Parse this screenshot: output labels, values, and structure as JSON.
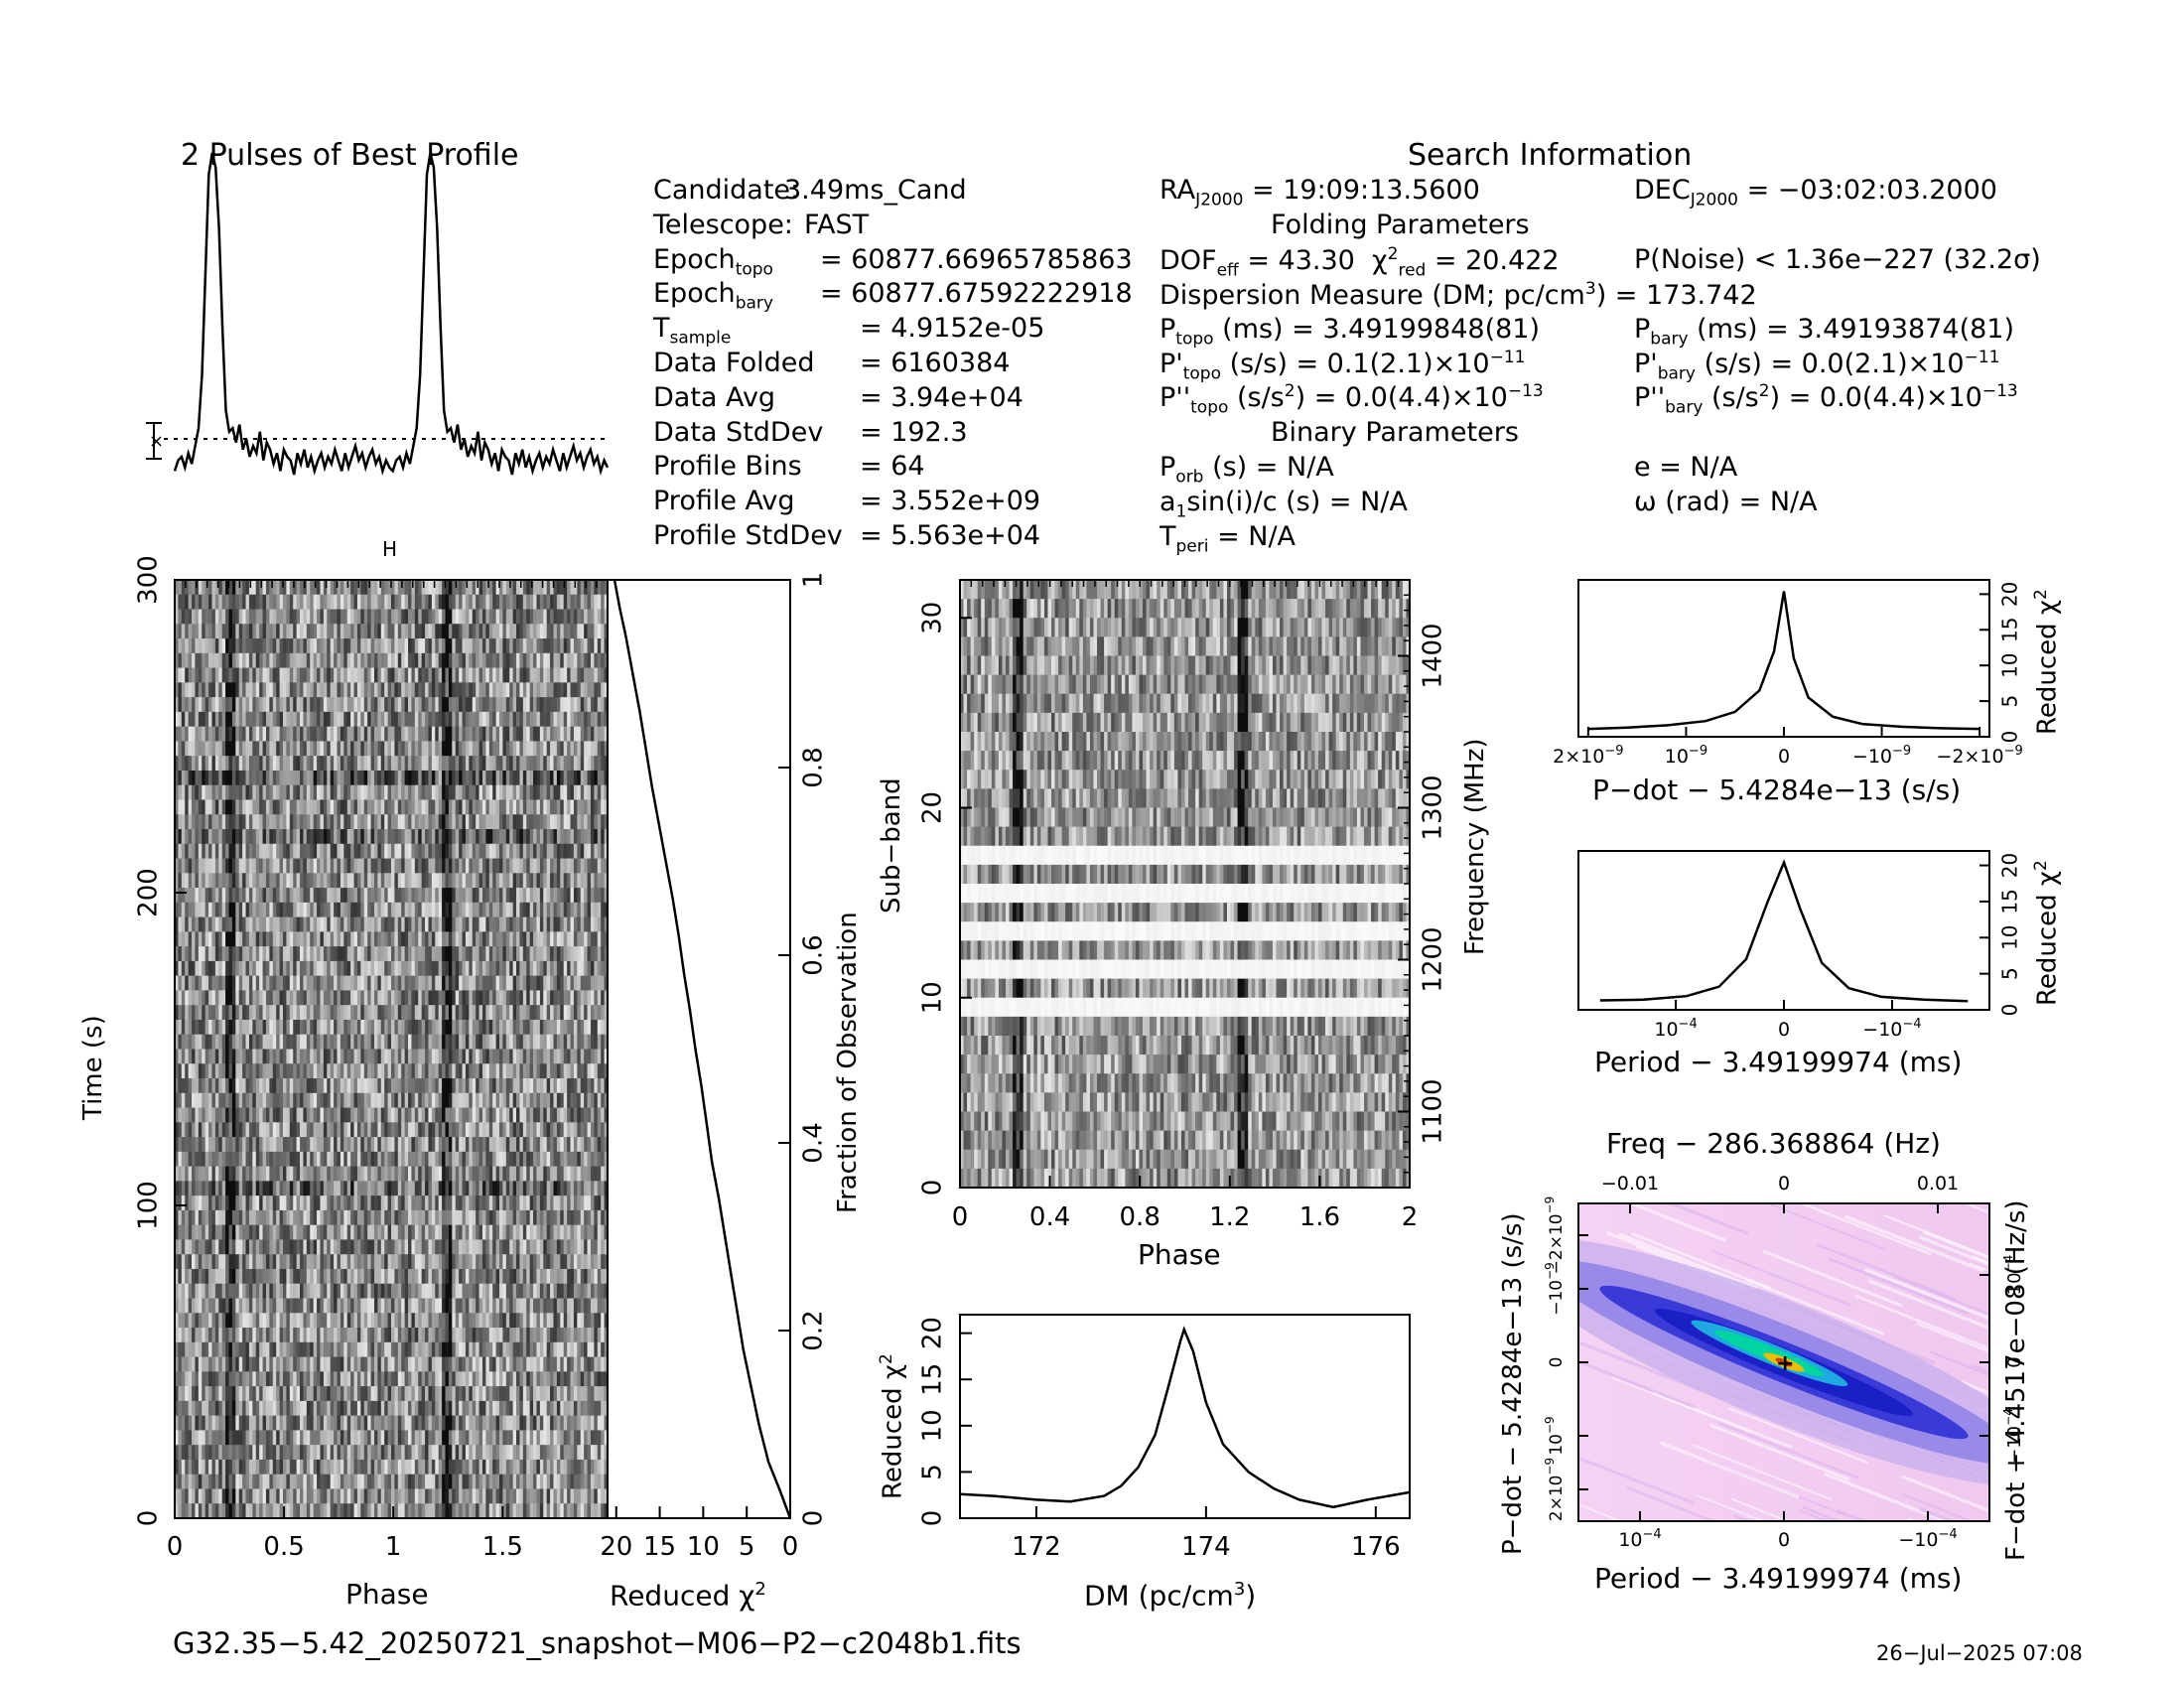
{
  "profile": {
    "title": "2 Pulses of Best Profile",
    "marker": "H",
    "values": [
      -0.9,
      -0.6,
      -0.5,
      -0.8,
      -0.4,
      -0.7,
      -0.2,
      0.3,
      1.8,
      4.6,
      7.4,
      8.0,
      7.6,
      5.9,
      3.1,
      0.8,
      0.2,
      0.3,
      -0.1,
      0.4,
      -0.3,
      0.0,
      -0.5,
      -0.2,
      -0.4,
      0.2,
      -0.6,
      -0.1,
      -0.3,
      -0.7,
      -0.4,
      -0.9,
      -0.3,
      -0.5,
      -0.6,
      -1.0,
      -0.4,
      -0.7,
      -0.3,
      -0.8,
      -0.5,
      -0.9,
      -0.6,
      -0.4,
      -0.8,
      -0.5,
      -0.7,
      -0.3,
      -0.6,
      -0.9,
      -0.4,
      -0.8,
      -0.5,
      -0.2,
      -0.6,
      -0.4,
      -0.8,
      -0.5,
      -0.3,
      -0.7,
      -0.5,
      -0.9,
      -0.6,
      -0.8
    ]
  },
  "info": {
    "header": "Search Information",
    "left": [
      {
        "label": "Candidate:",
        "value": "3.49ms_Cand"
      },
      {
        "label": "Telescope:",
        "value": "FAST"
      },
      {
        "label": "Epoch",
        "sub": "topo",
        "value": "= 60877.66965785863"
      },
      {
        "label": "Epoch",
        "sub": "bary",
        "value": "= 60877.67592222918"
      },
      {
        "label": "T",
        "sub": "sample",
        "value": "=   4.9152e-05"
      },
      {
        "label": "Data Folded",
        "value": "=   6160384"
      },
      {
        "label": "Data Avg",
        "value": "=   3.94e+04"
      },
      {
        "label": "Data StdDev",
        "value": "=   192.3"
      },
      {
        "label": "Profile Bins",
        "value": "=   64"
      },
      {
        "label": "Profile Avg",
        "value": "=   3.552e+09"
      },
      {
        "label": "Profile StdDev",
        "value": "=   5.563e+04"
      }
    ],
    "ra": "= 19:09:13.5600",
    "dec": "= −03:02:03.2000",
    "folding_header": "Folding Parameters",
    "dof": "= 43.30",
    "chi2red": "= 20.422",
    "pnoise": "P(Noise) < 1.36e−227  (32.2σ)",
    "dm_line": "Dispersion Measure (DM; pc/cm",
    "dm_value": ") = 173.742",
    "ptopo": "(ms) =  3.49199848(81)",
    "pbary": "(ms) =  3.49193874(81)",
    "pdot_topo": "(s/s) =  0.1(2.1)×10",
    "pdot_bary": "(s/s) = 0.0(2.1)×10",
    "pddot_topo": ") = 0.0(4.4)×10",
    "pddot_bary": ") = 0.0(4.4)×10",
    "exp11": "−11",
    "exp13": "−13",
    "binary_header": "Binary Parameters",
    "porb": "(s) = N/A",
    "a1": "sin(i)/c (s) = N/A",
    "tperi": "= N/A",
    "ecc": "e = N/A",
    "omega": "ω (rad) = N/A"
  },
  "time_phase": {
    "ylabel": "Time (s)",
    "xlabel": "Phase",
    "yticks": [
      "0",
      "100",
      "200",
      "300"
    ],
    "xticks": [
      "0",
      "0.5",
      "1",
      "1.5"
    ]
  },
  "chi_time": {
    "xlabel": "Reduced χ",
    "xticks": [
      "20",
      "15",
      "10",
      "5",
      "0"
    ],
    "yticks": [
      "0",
      "0.2",
      "0.4",
      "0.6",
      "0.8",
      "1"
    ],
    "ylabel": "Fraction of Observation",
    "curve": [
      [
        0,
        0
      ],
      [
        1.2,
        0.03
      ],
      [
        2.5,
        0.06
      ],
      [
        3.6,
        0.1
      ],
      [
        4.5,
        0.14
      ],
      [
        5.4,
        0.18
      ],
      [
        6.1,
        0.22
      ],
      [
        6.8,
        0.26
      ],
      [
        7.5,
        0.3
      ],
      [
        8.2,
        0.34
      ],
      [
        9.0,
        0.38
      ],
      [
        9.6,
        0.42
      ],
      [
        10.2,
        0.46
      ],
      [
        10.9,
        0.5
      ],
      [
        11.5,
        0.54
      ],
      [
        12.2,
        0.58
      ],
      [
        12.8,
        0.62
      ],
      [
        13.5,
        0.66
      ],
      [
        14.3,
        0.7
      ],
      [
        15.1,
        0.74
      ],
      [
        15.9,
        0.78
      ],
      [
        16.6,
        0.82
      ],
      [
        17.3,
        0.86
      ],
      [
        18.1,
        0.9
      ],
      [
        18.9,
        0.94
      ],
      [
        19.6,
        0.97
      ],
      [
        20.2,
        1.0
      ]
    ]
  },
  "subband": {
    "ylabel": "Sub−band",
    "xlabel": "Phase",
    "yticks": [
      "0",
      "10",
      "20",
      "30"
    ],
    "xticks": [
      "0",
      "0.4",
      "0.8",
      "1.2",
      "1.6",
      "2"
    ],
    "freq_label": "Frequency (MHz)",
    "freq_ticks": [
      "1100",
      "1200",
      "1300",
      "1400"
    ]
  },
  "dm_chi": {
    "ylabel": "Reduced χ",
    "xlabel": "DM (pc/cm",
    "xlabel_end": ")",
    "xticks": [
      "172",
      "174",
      "176"
    ],
    "yticks": [
      "0",
      "5",
      "10",
      "15",
      "20"
    ],
    "curve": [
      [
        171.1,
        2.6
      ],
      [
        171.5,
        2.4
      ],
      [
        172.0,
        2.0
      ],
      [
        172.4,
        1.8
      ],
      [
        172.8,
        2.4
      ],
      [
        173.0,
        3.5
      ],
      [
        173.2,
        5.5
      ],
      [
        173.4,
        9.0
      ],
      [
        173.55,
        14.0
      ],
      [
        173.7,
        19.2
      ],
      [
        173.742,
        20.4
      ],
      [
        173.85,
        18.0
      ],
      [
        174.0,
        12.5
      ],
      [
        174.2,
        8.0
      ],
      [
        174.5,
        5.0
      ],
      [
        174.8,
        3.2
      ],
      [
        175.1,
        2.0
      ],
      [
        175.5,
        1.2
      ],
      [
        175.9,
        2.0
      ],
      [
        176.4,
        2.8
      ]
    ]
  },
  "pdot_chi": {
    "ylabel": "Reduced χ",
    "xlabel": "P−dot − 5.4284e−13 (s/s)",
    "xticks": [
      "2×10",
      "10",
      "0",
      "−10",
      "−2×10"
    ],
    "xtick_exp": "−9",
    "yticks": [
      "0",
      "5",
      "10",
      "15",
      "20"
    ],
    "curve": [
      [
        -2.0,
        1.1
      ],
      [
        -1.6,
        1.3
      ],
      [
        -1.2,
        1.6
      ],
      [
        -0.8,
        2.2
      ],
      [
        -0.5,
        3.5
      ],
      [
        -0.25,
        6.5
      ],
      [
        -0.1,
        12.0
      ],
      [
        0.0,
        20.4
      ],
      [
        0.1,
        11.0
      ],
      [
        0.25,
        5.5
      ],
      [
        0.5,
        2.8
      ],
      [
        0.8,
        1.8
      ],
      [
        1.2,
        1.4
      ],
      [
        1.6,
        1.2
      ],
      [
        2.0,
        1.1
      ]
    ]
  },
  "period_chi": {
    "ylabel": "Reduced χ",
    "xlabel": "Period − 3.49199974 (ms)",
    "xticks": [
      "10",
      "0",
      "−10"
    ],
    "xtick_exp": "−4",
    "yticks": [
      "0",
      "5",
      "10",
      "15",
      "20"
    ],
    "curve": [
      [
        -1.7,
        1.3
      ],
      [
        -1.3,
        1.4
      ],
      [
        -0.9,
        1.9
      ],
      [
        -0.6,
        3.2
      ],
      [
        -0.35,
        7.0
      ],
      [
        -0.15,
        15.0
      ],
      [
        0.0,
        20.4
      ],
      [
        0.15,
        14.0
      ],
      [
        0.35,
        6.5
      ],
      [
        0.6,
        3.0
      ],
      [
        0.9,
        1.8
      ],
      [
        1.3,
        1.4
      ],
      [
        1.7,
        1.2
      ]
    ]
  },
  "pp_plane": {
    "top_label": "Freq − 286.368864 (Hz)",
    "top_ticks": [
      "−0.01",
      "0",
      "0.01"
    ],
    "ylabel": "P−dot − 5.4284e−13 (s/s)",
    "xlabel": "Period − 3.49199974 (ms)",
    "right_label": "F−dot + 4.4517e−08 (Hz/s)",
    "left_ticks": [
      "2×10",
      "10",
      "0",
      "−10",
      "−2×10"
    ],
    "left_exp": "−9",
    "right_ticks": [
      "−10",
      "0",
      "10"
    ],
    "right_exp": "−4",
    "bottom_ticks": [
      "10",
      "0",
      "−10"
    ],
    "bottom_exp": "−4",
    "colors": {
      "bg": "#f5d2f3",
      "mid": "#8f83e8",
      "deep": "#1b1fc6",
      "core": "#00d4a0",
      "peak": "#e8c000"
    }
  },
  "footer": {
    "filename": "G32.35−5.42_20250721_snapshot−M06−P2−c2048b1.fits",
    "date": "26−Jul−2025 07:08"
  }
}
